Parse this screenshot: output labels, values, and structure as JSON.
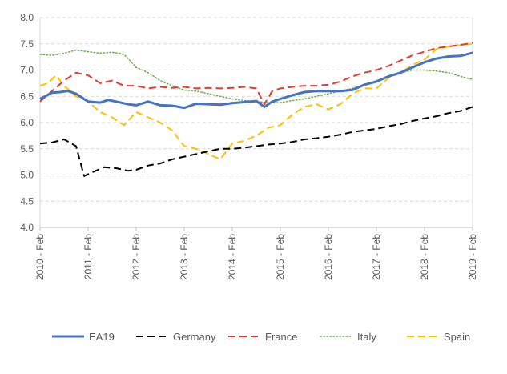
{
  "chart_data": {
    "type": "line",
    "title": "",
    "xlabel": "",
    "ylabel": "",
    "ylim": [
      4.0,
      8.0
    ],
    "y_ticks": [
      "4.0",
      "4.5",
      "5.0",
      "5.5",
      "6.0",
      "6.5",
      "7.0",
      "7.5",
      "8.0"
    ],
    "x_ticks": [
      "2010 - Feb",
      "2011 - Feb",
      "2012 - Feb",
      "2013 - Feb",
      "2014 - Feb",
      "2015 - Feb",
      "2016 - Feb",
      "2017 - Feb",
      "2018 - Feb",
      "2019 - Feb"
    ],
    "grid": "horizontal",
    "legend_position": "bottom",
    "series": [
      {
        "name": "EA19",
        "color": "#4472C4",
        "style": "solid",
        "points": [
          [
            "2010-02",
            6.45
          ],
          [
            "2010-05",
            6.57
          ],
          [
            "2010-07",
            6.58
          ],
          [
            "2010-09",
            6.6
          ],
          [
            "2010-11",
            6.55
          ],
          [
            "2011-02",
            6.4
          ],
          [
            "2011-05",
            6.38
          ],
          [
            "2011-07",
            6.43
          ],
          [
            "2011-09",
            6.4
          ],
          [
            "2011-12",
            6.35
          ],
          [
            "2012-02",
            6.33
          ],
          [
            "2012-05",
            6.4
          ],
          [
            "2012-08",
            6.33
          ],
          [
            "2012-11",
            6.32
          ],
          [
            "2013-02",
            6.28
          ],
          [
            "2013-05",
            6.36
          ],
          [
            "2013-08",
            6.35
          ],
          [
            "2013-11",
            6.34
          ],
          [
            "2014-02",
            6.37
          ],
          [
            "2014-05",
            6.39
          ],
          [
            "2014-08",
            6.41
          ],
          [
            "2014-10",
            6.3
          ],
          [
            "2014-12",
            6.4
          ],
          [
            "2015-02",
            6.45
          ],
          [
            "2015-05",
            6.52
          ],
          [
            "2015-08",
            6.58
          ],
          [
            "2015-11",
            6.6
          ],
          [
            "2016-02",
            6.6
          ],
          [
            "2016-05",
            6.6
          ],
          [
            "2016-08",
            6.62
          ],
          [
            "2016-11",
            6.72
          ],
          [
            "2017-02",
            6.78
          ],
          [
            "2017-05",
            6.88
          ],
          [
            "2017-08",
            6.95
          ],
          [
            "2017-11",
            7.05
          ],
          [
            "2018-02",
            7.15
          ],
          [
            "2018-05",
            7.22
          ],
          [
            "2018-08",
            7.26
          ],
          [
            "2018-11",
            7.27
          ],
          [
            "2019-02",
            7.33
          ]
        ]
      },
      {
        "name": "Germany",
        "color": "#000000",
        "style": "dash",
        "points": [
          [
            "2010-02",
            5.6
          ],
          [
            "2010-05",
            5.62
          ],
          [
            "2010-08",
            5.68
          ],
          [
            "2010-11",
            5.55
          ],
          [
            "2011-01",
            4.98
          ],
          [
            "2011-03",
            5.05
          ],
          [
            "2011-06",
            5.15
          ],
          [
            "2011-09",
            5.13
          ],
          [
            "2011-12",
            5.08
          ],
          [
            "2012-02",
            5.1
          ],
          [
            "2012-05",
            5.18
          ],
          [
            "2012-08",
            5.22
          ],
          [
            "2012-11",
            5.3
          ],
          [
            "2013-02",
            5.35
          ],
          [
            "2013-05",
            5.4
          ],
          [
            "2013-08",
            5.45
          ],
          [
            "2013-11",
            5.5
          ],
          [
            "2014-02",
            5.5
          ],
          [
            "2014-05",
            5.52
          ],
          [
            "2014-08",
            5.55
          ],
          [
            "2014-11",
            5.58
          ],
          [
            "2015-02",
            5.6
          ],
          [
            "2015-05",
            5.63
          ],
          [
            "2015-08",
            5.68
          ],
          [
            "2015-11",
            5.7
          ],
          [
            "2016-02",
            5.73
          ],
          [
            "2016-05",
            5.77
          ],
          [
            "2016-08",
            5.82
          ],
          [
            "2016-11",
            5.85
          ],
          [
            "2017-02",
            5.88
          ],
          [
            "2017-05",
            5.93
          ],
          [
            "2017-08",
            5.97
          ],
          [
            "2017-11",
            6.03
          ],
          [
            "2018-02",
            6.08
          ],
          [
            "2018-05",
            6.12
          ],
          [
            "2018-08",
            6.18
          ],
          [
            "2018-11",
            6.22
          ],
          [
            "2019-02",
            6.3
          ]
        ]
      },
      {
        "name": "France",
        "color": "#E03C31",
        "style": "dash",
        "points": [
          [
            "2010-02",
            6.4
          ],
          [
            "2010-05",
            6.6
          ],
          [
            "2010-08",
            6.8
          ],
          [
            "2010-11",
            6.95
          ],
          [
            "2011-02",
            6.9
          ],
          [
            "2011-05",
            6.75
          ],
          [
            "2011-08",
            6.8
          ],
          [
            "2011-11",
            6.7
          ],
          [
            "2012-02",
            6.7
          ],
          [
            "2012-05",
            6.65
          ],
          [
            "2012-08",
            6.68
          ],
          [
            "2012-11",
            6.66
          ],
          [
            "2013-02",
            6.68
          ],
          [
            "2013-05",
            6.65
          ],
          [
            "2013-08",
            6.66
          ],
          [
            "2013-11",
            6.65
          ],
          [
            "2014-02",
            6.66
          ],
          [
            "2014-05",
            6.68
          ],
          [
            "2014-08",
            6.65
          ],
          [
            "2014-10",
            6.35
          ],
          [
            "2014-12",
            6.6
          ],
          [
            "2015-02",
            6.65
          ],
          [
            "2015-05",
            6.68
          ],
          [
            "2015-08",
            6.7
          ],
          [
            "2015-11",
            6.7
          ],
          [
            "2016-02",
            6.72
          ],
          [
            "2016-05",
            6.78
          ],
          [
            "2016-08",
            6.88
          ],
          [
            "2016-11",
            6.95
          ],
          [
            "2017-02",
            7.0
          ],
          [
            "2017-05",
            7.08
          ],
          [
            "2017-08",
            7.18
          ],
          [
            "2017-11",
            7.28
          ],
          [
            "2018-02",
            7.35
          ],
          [
            "2018-05",
            7.42
          ],
          [
            "2018-08",
            7.45
          ],
          [
            "2018-11",
            7.48
          ],
          [
            "2019-02",
            7.52
          ]
        ]
      },
      {
        "name": "Italy",
        "color": "#70AD47",
        "style": "dot",
        "points": [
          [
            "2010-02",
            7.3
          ],
          [
            "2010-05",
            7.28
          ],
          [
            "2010-08",
            7.32
          ],
          [
            "2010-11",
            7.38
          ],
          [
            "2011-02",
            7.35
          ],
          [
            "2011-05",
            7.32
          ],
          [
            "2011-08",
            7.34
          ],
          [
            "2011-11",
            7.3
          ],
          [
            "2012-02",
            7.05
          ],
          [
            "2012-05",
            6.95
          ],
          [
            "2012-08",
            6.8
          ],
          [
            "2012-11",
            6.7
          ],
          [
            "2013-02",
            6.62
          ],
          [
            "2013-05",
            6.6
          ],
          [
            "2013-08",
            6.55
          ],
          [
            "2013-11",
            6.5
          ],
          [
            "2014-02",
            6.45
          ],
          [
            "2014-05",
            6.42
          ],
          [
            "2014-08",
            6.4
          ],
          [
            "2014-11",
            6.38
          ],
          [
            "2015-02",
            6.38
          ],
          [
            "2015-05",
            6.42
          ],
          [
            "2015-08",
            6.45
          ],
          [
            "2015-11",
            6.5
          ],
          [
            "2016-02",
            6.55
          ],
          [
            "2016-05",
            6.6
          ],
          [
            "2016-08",
            6.65
          ],
          [
            "2016-11",
            6.72
          ],
          [
            "2017-02",
            6.8
          ],
          [
            "2017-05",
            6.88
          ],
          [
            "2017-08",
            6.95
          ],
          [
            "2017-11",
            7.0
          ],
          [
            "2018-02",
            7.0
          ],
          [
            "2018-05",
            6.98
          ],
          [
            "2018-08",
            6.95
          ],
          [
            "2018-11",
            6.88
          ],
          [
            "2019-02",
            6.82
          ]
        ]
      },
      {
        "name": "Spain",
        "color": "#FFC000",
        "style": "dash",
        "points": [
          [
            "2010-02",
            6.7
          ],
          [
            "2010-04",
            6.75
          ],
          [
            "2010-06",
            6.9
          ],
          [
            "2010-08",
            6.7
          ],
          [
            "2010-11",
            6.5
          ],
          [
            "2011-02",
            6.4
          ],
          [
            "2011-05",
            6.2
          ],
          [
            "2011-08",
            6.1
          ],
          [
            "2011-11",
            5.95
          ],
          [
            "2012-02",
            6.2
          ],
          [
            "2012-05",
            6.1
          ],
          [
            "2012-08",
            6.0
          ],
          [
            "2012-11",
            5.85
          ],
          [
            "2013-02",
            5.55
          ],
          [
            "2013-05",
            5.5
          ],
          [
            "2013-08",
            5.4
          ],
          [
            "2013-11",
            5.3
          ],
          [
            "2014-02",
            5.6
          ],
          [
            "2014-05",
            5.65
          ],
          [
            "2014-08",
            5.75
          ],
          [
            "2014-11",
            5.9
          ],
          [
            "2015-02",
            5.95
          ],
          [
            "2015-05",
            6.15
          ],
          [
            "2015-08",
            6.3
          ],
          [
            "2015-11",
            6.35
          ],
          [
            "2016-02",
            6.25
          ],
          [
            "2016-05",
            6.35
          ],
          [
            "2016-08",
            6.55
          ],
          [
            "2016-11",
            6.65
          ],
          [
            "2017-02",
            6.65
          ],
          [
            "2017-05",
            6.85
          ],
          [
            "2017-08",
            6.95
          ],
          [
            "2017-11",
            7.1
          ],
          [
            "2018-02",
            7.2
          ],
          [
            "2018-05",
            7.4
          ],
          [
            "2018-08",
            7.45
          ],
          [
            "2018-11",
            7.48
          ],
          [
            "2019-02",
            7.5
          ]
        ]
      }
    ]
  }
}
